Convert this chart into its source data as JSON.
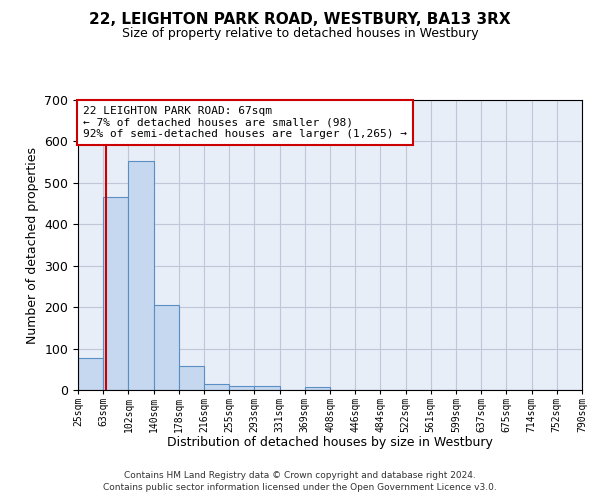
{
  "title": "22, LEIGHTON PARK ROAD, WESTBURY, BA13 3RX",
  "subtitle": "Size of property relative to detached houses in Westbury",
  "xlabel": "Distribution of detached houses by size in Westbury",
  "ylabel": "Number of detached properties",
  "categories": [
    "25sqm",
    "63sqm",
    "102sqm",
    "140sqm",
    "178sqm",
    "216sqm",
    "255sqm",
    "293sqm",
    "331sqm",
    "369sqm",
    "408sqm",
    "446sqm",
    "484sqm",
    "522sqm",
    "561sqm",
    "599sqm",
    "637sqm",
    "675sqm",
    "714sqm",
    "752sqm",
    "790sqm"
  ],
  "bar_values": [
    78,
    465,
    553,
    204,
    58,
    14,
    10,
    10,
    0,
    8,
    0,
    0,
    0,
    0,
    0,
    0,
    0,
    0,
    0,
    0
  ],
  "bar_color": "#c5d8f0",
  "bar_edge_color": "#5a8fc3",
  "grid_color": "#c0c8d8",
  "background_color": "#e8eef8",
  "property_sqm": 67,
  "bin_starts": [
    25,
    63,
    102,
    140,
    178,
    216,
    255,
    293,
    331,
    369,
    408,
    446,
    484,
    522,
    561,
    599,
    637,
    675,
    714,
    752,
    790
  ],
  "annotation_text": "22 LEIGHTON PARK ROAD: 67sqm\n← 7% of detached houses are smaller (98)\n92% of semi-detached houses are larger (1,265) →",
  "annotation_box_color": "#ffffff",
  "annotation_border_color": "#cc0000",
  "red_line_color": "#cc0000",
  "ylim": [
    0,
    700
  ],
  "yticks": [
    0,
    100,
    200,
    300,
    400,
    500,
    600,
    700
  ],
  "footer_line1": "Contains HM Land Registry data © Crown copyright and database right 2024.",
  "footer_line2": "Contains public sector information licensed under the Open Government Licence v3.0."
}
